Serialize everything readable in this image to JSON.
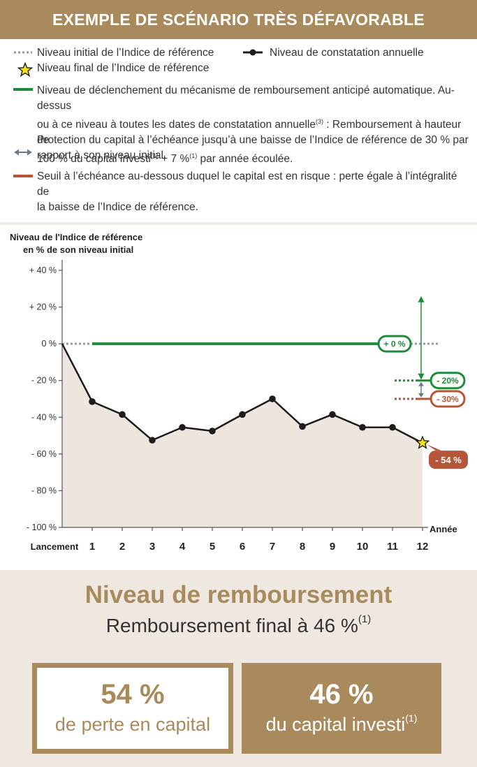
{
  "banner_title": "EXEMPLE DE SCÉNARIO TRÈS DÉFAVORABLE",
  "legend": {
    "initial_level": "Niveau initial de l’Indice de référence",
    "final_level": "Niveau final de l’Indice de référence",
    "annual_observation": "Niveau de constatation annuelle",
    "trigger_line1": "Niveau de déclenchement du mécanisme de remboursement anticipé automatique. Au-dessus",
    "trigger_line2_a": "ou à ce niveau à toutes les dates de constatation annuelle",
    "trigger_line2_sup": "(3)",
    "trigger_line2_b": " : Remboursement à hauteur de",
    "trigger_line3_a": "100 % du capital investi",
    "trigger_line3_sup1": "(1)",
    "trigger_line3_b": " + 7 %",
    "trigger_line3_sup2": "(1)",
    "trigger_line3_c": " par année écoulée.",
    "protection_line1": "Protection du capital à l’échéance jusqu’à une baisse de l’Indice de référence de 30 % par",
    "protection_line2": "rapport à son niveau initial.",
    "threshold_line1": "Seuil à l’échéance au-dessous duquel le capital est en risque : perte égale à l’intégralité de",
    "threshold_line2": "la baisse de l’Indice de référence."
  },
  "colors": {
    "gold": "#a98a5d",
    "green": "#1e8c3a",
    "red": "#b5563a",
    "grey": "#9a9a9a",
    "fill": "#ece6df"
  },
  "chart_data": {
    "type": "line",
    "ylabel_line1": "Niveau de l'Indice de référence",
    "ylabel_line2": "en % de son niveau initial",
    "xlabel": "Année",
    "x_start_label": "Lancement",
    "x": [
      0,
      1,
      2,
      3,
      4,
      5,
      6,
      7,
      8,
      9,
      10,
      11,
      12
    ],
    "x_tick_labels": [
      "1",
      "2",
      "3",
      "4",
      "5",
      "6",
      "7",
      "8",
      "9",
      "10",
      "11",
      "12"
    ],
    "y_ticks": [
      40,
      20,
      0,
      -20,
      -40,
      -60,
      -80,
      -100
    ],
    "y_tick_labels": [
      "+ 40 %",
      "+ 20 %",
      "0 %",
      "- 20 %",
      "- 40 %",
      "- 60 %",
      "- 80 %",
      "- 100 %"
    ],
    "ylim": [
      -100,
      40
    ],
    "xlim": [
      0,
      12
    ],
    "series": [
      {
        "values": [
          0,
          -31.5,
          -38.5,
          -52.5,
          -45.5,
          -47.5,
          -38.5,
          -30,
          -45,
          -38.5,
          -45.5,
          -45.5,
          -54
        ]
      }
    ],
    "reference_levels": {
      "initial": 0,
      "trigger": 0,
      "protection": -30,
      "protection_label": "- 30%",
      "trigger_final": -20,
      "trigger_final_label": "- 20%",
      "zero_label": "+ 0 %",
      "final_label": "- 54 %"
    }
  },
  "result": {
    "title": "Niveau de remboursement",
    "subtitle": "Remboursement final à 46 %",
    "subtitle_sup": "(1)",
    "loss_value": "54 %",
    "loss_text": "de perte en capital",
    "capital_value": "46 %",
    "capital_text": "du capital investi",
    "capital_sup": "(1)"
  }
}
